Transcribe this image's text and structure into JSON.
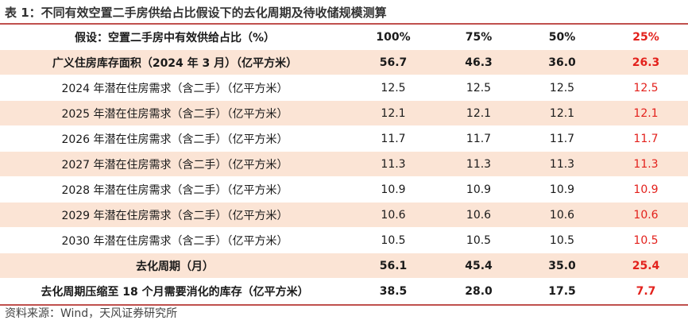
{
  "title": "表 1：不同有效空置二手房供给占比假设下的去化周期及待收储规模测算",
  "header": [
    "假设：空置二手房中有效供给占比（%）",
    "100%",
    "75%",
    "50%",
    "25%"
  ],
  "rows": [
    {
      "label": "广义住房库存面积（2024 年 3 月）（亿平方米）",
      "values": [
        "56.7",
        "46.3",
        "36.0",
        "26.3"
      ],
      "bold": true,
      "shaded": true
    },
    {
      "label": "2024 年潜在住房需求（含二手）（亿平方米）",
      "values": [
        "12.5",
        "12.5",
        "12.5",
        "12.5"
      ],
      "bold": false,
      "shaded": false
    },
    {
      "label": "2025 年潜在住房需求（含二手）（亿平方米）",
      "values": [
        "12.1",
        "12.1",
        "12.1",
        "12.1"
      ],
      "bold": false,
      "shaded": true
    },
    {
      "label": "2026 年潜在住房需求（含二手）（亿平方米）",
      "values": [
        "11.7",
        "11.7",
        "11.7",
        "11.7"
      ],
      "bold": false,
      "shaded": false
    },
    {
      "label": "2027 年潜在住房需求（含二手）（亿平方米）",
      "values": [
        "11.3",
        "11.3",
        "11.3",
        "11.3"
      ],
      "bold": false,
      "shaded": true
    },
    {
      "label": "2028 年潜在住房需求（含二手）（亿平方米）",
      "values": [
        "10.9",
        "10.9",
        "10.9",
        "10.9"
      ],
      "bold": false,
      "shaded": false
    },
    {
      "label": "2029 年潜在住房需求（含二手）（亿平方米）",
      "values": [
        "10.6",
        "10.6",
        "10.6",
        "10.6"
      ],
      "bold": false,
      "shaded": true
    },
    {
      "label": "2030 年潜在住房需求（含二手）（亿平方米）",
      "values": [
        "10.5",
        "10.5",
        "10.5",
        "10.5"
      ],
      "bold": false,
      "shaded": false
    },
    {
      "label": "去化周期（月）",
      "values": [
        "56.1",
        "45.4",
        "35.0",
        "25.4"
      ],
      "bold": true,
      "shaded": true
    },
    {
      "label": "去化周期压缩至 18 个月需要消化的库存（亿平方米）",
      "values": [
        "38.5",
        "28.0",
        "17.5",
        "7.7"
      ],
      "bold": true,
      "shaded": false
    }
  ],
  "source": "资料来源：Wind，天风证券研究所",
  "colors": {
    "accent": "#c0504d",
    "highlight": "#e3211c",
    "shade": "#fbe4d5"
  }
}
